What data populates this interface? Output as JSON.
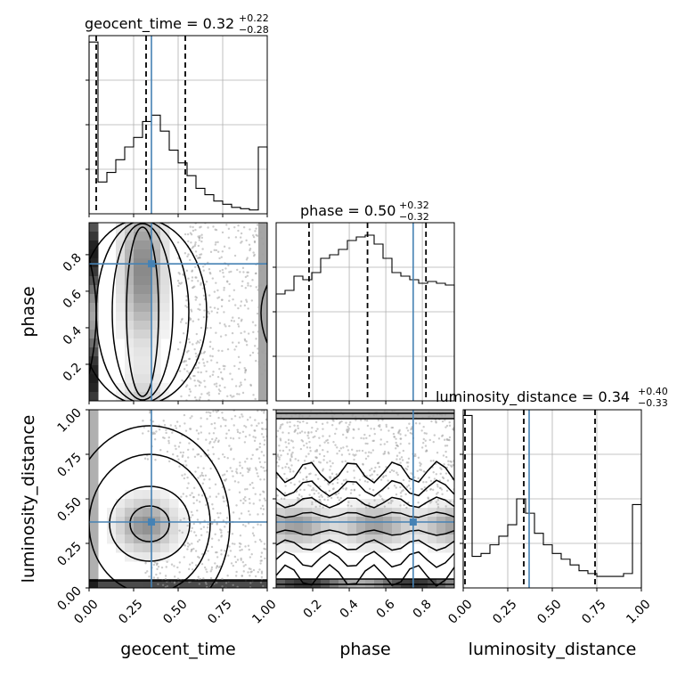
{
  "chart_data": {
    "type": "corner",
    "parameters": [
      "geocent_time",
      "phase",
      "luminosity_distance"
    ],
    "ranges": {
      "geocent_time": [
        0.0,
        1.0
      ],
      "phase": [
        0.0,
        0.975
      ],
      "luminosity_distance": [
        0.0,
        1.0
      ]
    },
    "truths": {
      "geocent_time": 0.35,
      "phase": 0.75,
      "luminosity_distance": 0.37
    },
    "titles": [
      {
        "param": "geocent_time",
        "name": "geocent_time",
        "median": "0.32",
        "plus": "+0.22",
        "minus": "−0.28"
      },
      {
        "param": "phase",
        "name": "phase",
        "median": "0.50",
        "plus": "+0.32",
        "minus": "−0.32"
      },
      {
        "param": "luminosity_distance",
        "name": "luminosity_distance",
        "median": "0.34",
        "plus": "+0.40",
        "minus": "−0.33"
      }
    ],
    "quantile_lines": {
      "geocent_time": [
        0.04,
        0.32,
        0.54
      ],
      "phase": [
        0.18,
        0.5,
        0.82
      ],
      "luminosity_distance": [
        0.01,
        0.34,
        0.74
      ]
    },
    "histograms": {
      "geocent_time": {
        "bins": 20,
        "counts": [
          2.7,
          0.5,
          0.65,
          0.85,
          1.05,
          1.2,
          1.45,
          1.55,
          1.3,
          1.0,
          0.8,
          0.6,
          0.4,
          0.3,
          0.2,
          0.15,
          0.1,
          0.08,
          0.06,
          1.05
        ],
        "ymax": 2.8
      },
      "phase": {
        "bins": 20,
        "counts": [
          0.6,
          0.62,
          0.7,
          0.68,
          0.72,
          0.8,
          0.82,
          0.85,
          0.9,
          0.92,
          0.93,
          0.88,
          0.8,
          0.72,
          0.7,
          0.68,
          0.66,
          0.67,
          0.66,
          0.65
        ],
        "ymax": 1.0
      },
      "luminosity_distance": {
        "bins": 20,
        "counts": [
          3.0,
          0.55,
          0.6,
          0.75,
          0.9,
          1.1,
          1.55,
          1.3,
          0.95,
          0.75,
          0.6,
          0.5,
          0.4,
          0.3,
          0.25,
          0.2,
          0.2,
          0.2,
          0.25,
          1.45
        ],
        "ymax": 3.1
      }
    },
    "tick_labels": {
      "geocent_time": [
        "0.00",
        "0.25",
        "0.50",
        "0.75",
        "1.00"
      ],
      "phase": [
        "0.2",
        "0.4",
        "0.6",
        "0.8"
      ],
      "luminosity_distance": [
        "0.00",
        "0.25",
        "0.50",
        "0.75",
        "1.00"
      ]
    },
    "tick_values": {
      "geocent_time": [
        0.0,
        0.25,
        0.5,
        0.75,
        1.0
      ],
      "phase": [
        0.2,
        0.4,
        0.6,
        0.8
      ],
      "luminosity_distance": [
        0.0,
        0.25,
        0.5,
        0.75,
        1.0
      ]
    },
    "axis_labels": {
      "x": [
        "geocent_time",
        "phase",
        "luminosity_distance"
      ],
      "y": [
        "phase",
        "luminosity_distance"
      ]
    },
    "colors": {
      "truth": "#4682b4",
      "contour": "#000000",
      "quantile": "#000000",
      "scatter": "#a0a0a0",
      "grid": "#b0b0b0"
    },
    "grid": true
  }
}
